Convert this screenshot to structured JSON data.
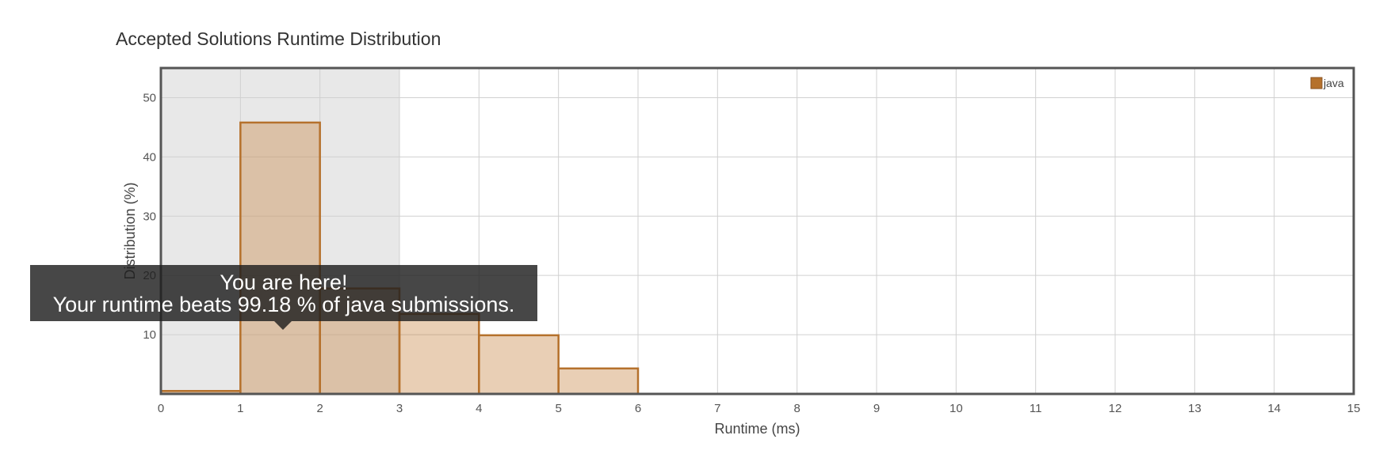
{
  "chart_data": {
    "type": "bar",
    "title": "Accepted Solutions Runtime Distribution",
    "xlabel": "Runtime (ms)",
    "ylabel": "Distribution (%)",
    "xlim": [
      0,
      15
    ],
    "ylim": [
      0,
      55
    ],
    "x_ticks": [
      0,
      1,
      2,
      3,
      4,
      5,
      6,
      7,
      8,
      9,
      10,
      11,
      12,
      13,
      14,
      15
    ],
    "y_ticks": [
      10,
      20,
      30,
      40,
      50
    ],
    "grid": true,
    "legend_position": "top-right",
    "highlight_range": [
      0,
      3
    ],
    "series": [
      {
        "name": "java",
        "color": "#b5712c",
        "bins": [
          {
            "start": 0,
            "end": 1,
            "value": 0.5
          },
          {
            "start": 1,
            "end": 2,
            "value": 45.8
          },
          {
            "start": 2,
            "end": 3,
            "value": 17.8
          },
          {
            "start": 3,
            "end": 4,
            "value": 13.5
          },
          {
            "start": 4,
            "end": 5,
            "value": 9.9
          },
          {
            "start": 5,
            "end": 6,
            "value": 4.3
          }
        ]
      }
    ]
  },
  "tooltip": {
    "line1": "You are here!",
    "line2": "Your runtime beats 99.18 % of java submissions."
  }
}
